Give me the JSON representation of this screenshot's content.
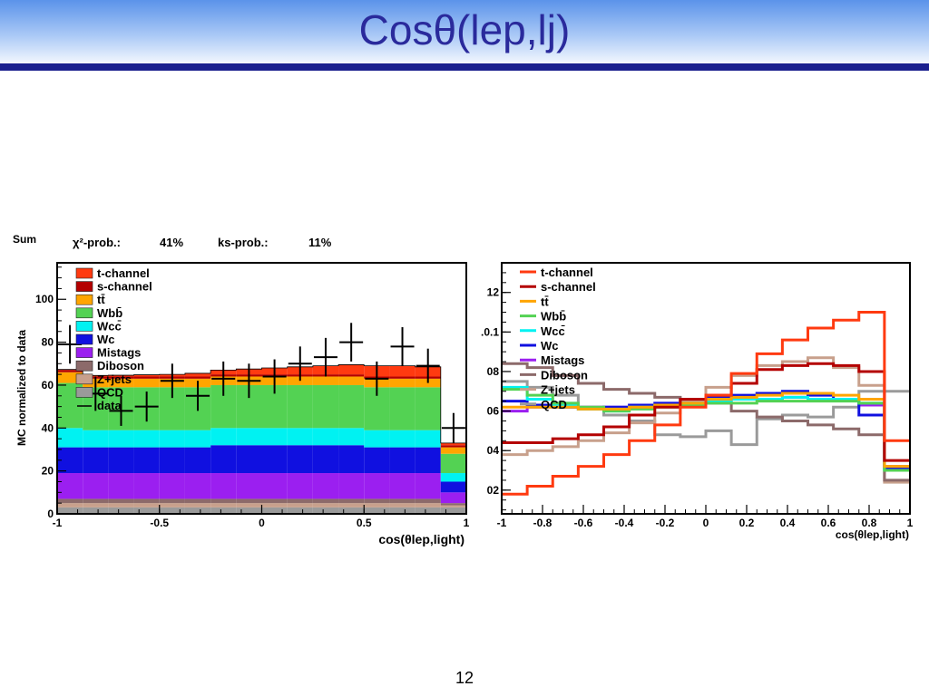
{
  "slide": {
    "title": "Cosθ(lep,lj)",
    "page_number": "12"
  },
  "left_header": {
    "sum_label": "Sum",
    "chi2_label": "χ²-prob.:",
    "chi2_value": "41%",
    "ks_label": "ks-prob.:",
    "ks_value": "11%"
  },
  "colors": {
    "t-channel": "#ff3a10",
    "s-channel": "#b40000",
    "ttbar": "#ffa500",
    "Wbb": "#53d253",
    "Wcc": "#00f2f2",
    "Wc": "#1010e0",
    "Mistags": "#9b1ff0",
    "Diboson": "#8c6a6a",
    "Zjets": "#c8a08c",
    "QCD": "#9a9a9a",
    "data": "#000000"
  },
  "chart_data": [
    {
      "type": "area",
      "stacked": true,
      "xlabel": "cos(θlep,light)",
      "ylabel": "MC normalized to data",
      "xlim": [
        -1,
        1
      ],
      "ylim": [
        0,
        117
      ],
      "x_ticks": [
        "-1",
        "-0.5",
        "0",
        "0.5",
        "1"
      ],
      "y_ticks": [
        "0",
        "20",
        "40",
        "60",
        "80",
        "100"
      ],
      "legend_position": "top-left",
      "bin_edges": [
        -1.0,
        -0.875,
        -0.75,
        -0.625,
        -0.5,
        -0.375,
        -0.25,
        -0.125,
        0.0,
        0.125,
        0.25,
        0.375,
        0.5,
        0.625,
        0.75,
        0.875,
        1.0
      ],
      "series": [
        {
          "name": "QCD",
          "color_key": "QCD",
          "values": [
            3,
            3,
            3,
            3,
            3,
            3,
            3,
            3,
            3,
            3,
            3,
            3,
            3,
            3,
            3,
            3
          ]
        },
        {
          "name": "Z+jets",
          "color_key": "Zjets",
          "values": [
            2,
            2,
            2,
            2,
            2,
            2,
            2,
            2,
            2,
            2,
            2,
            2,
            2,
            2,
            2,
            1
          ]
        },
        {
          "name": "Diboson",
          "color_key": "Diboson",
          "values": [
            2,
            2,
            2,
            2,
            2,
            2,
            2,
            2,
            2,
            2,
            2,
            2,
            2,
            2,
            2,
            1
          ]
        },
        {
          "name": "Mistags",
          "color_key": "Mistags",
          "values": [
            12,
            12,
            12,
            12,
            12,
            12,
            12,
            12,
            12,
            12,
            12,
            12,
            12,
            12,
            12,
            5
          ]
        },
        {
          "name": "Wc",
          "color_key": "Wc",
          "values": [
            12,
            12,
            12,
            12,
            12,
            12,
            13,
            13,
            13,
            13,
            13,
            13,
            12,
            12,
            12,
            5
          ]
        },
        {
          "name": "Wcc̄",
          "color_key": "Wcc",
          "values": [
            9,
            8,
            8,
            8,
            8,
            8,
            8,
            8,
            8,
            8,
            8,
            8,
            8,
            8,
            8,
            4
          ]
        },
        {
          "name": "Wbb̄",
          "color_key": "Wbb",
          "values": [
            21,
            20,
            20,
            20,
            20,
            20,
            20,
            20,
            20,
            20,
            20,
            20,
            20,
            20,
            20,
            9
          ]
        },
        {
          "name": "tt̄",
          "color_key": "ttbar",
          "values": [
            5,
            4,
            4,
            4,
            4,
            4,
            4,
            4,
            4,
            4,
            4,
            4,
            4,
            4,
            4,
            3
          ]
        },
        {
          "name": "s-channel",
          "color_key": "s-channel",
          "values": [
            1,
            1,
            1,
            1,
            1,
            1,
            1,
            1,
            1,
            1,
            1,
            1,
            1,
            1,
            1,
            1
          ]
        },
        {
          "name": "t-channel",
          "color_key": "t-channel",
          "values": [
            0.3,
            0.5,
            0.6,
            0.8,
            1,
            1.5,
            2,
            2.5,
            3,
            3.5,
            4,
            4.5,
            5,
            5,
            4.5,
            1
          ]
        }
      ],
      "data": {
        "name": "data",
        "x": [
          -0.9375,
          -0.8125,
          -0.6875,
          -0.5625,
          -0.4375,
          -0.3125,
          -0.1875,
          -0.0625,
          0.0625,
          0.1875,
          0.3125,
          0.4375,
          0.5625,
          0.6875,
          0.8125,
          0.9375
        ],
        "y": [
          79,
          56,
          48,
          50,
          62,
          55,
          63,
          62,
          64,
          70,
          73,
          80,
          63,
          78,
          69,
          40
        ],
        "yerr": [
          9,
          8,
          7,
          7,
          8,
          7,
          8,
          8,
          8,
          8,
          9,
          9,
          8,
          9,
          8,
          7
        ]
      },
      "legend": [
        "t-channel",
        "s-channel",
        "tt̄",
        "Wbb̄",
        "Wcc̄",
        "Wc",
        "Mistags",
        "Diboson",
        "Z+jets",
        "QCD",
        "data"
      ]
    },
    {
      "type": "line",
      "step": true,
      "normalized": true,
      "xlabel": "cos(θlep,light)",
      "ylabel": "",
      "xlim": [
        -1,
        1
      ],
      "ylim": [
        0.008,
        0.135
      ],
      "x_ticks": [
        "-1",
        "-0.8",
        "-0.6",
        "-0.4",
        "-0.2",
        "0",
        "0.2",
        "0.4",
        "0.6",
        "0.8",
        "1"
      ],
      "y_ticks": [
        "02",
        "04",
        "06",
        "08",
        ".0.1",
        "12"
      ],
      "legend_position": "top-left",
      "bin_edges": [
        -1.0,
        -0.875,
        -0.75,
        -0.625,
        -0.5,
        -0.375,
        -0.25,
        -0.125,
        0.0,
        0.125,
        0.25,
        0.375,
        0.5,
        0.625,
        0.75,
        0.875,
        1.0
      ],
      "series": [
        {
          "name": "t-channel",
          "color_key": "t-channel",
          "values": [
            0.018,
            0.022,
            0.027,
            0.032,
            0.038,
            0.045,
            0.053,
            0.062,
            0.068,
            0.079,
            0.089,
            0.096,
            0.102,
            0.106,
            0.11,
            0.045
          ]
        },
        {
          "name": "s-channel",
          "color_key": "s-channel",
          "values": [
            0.044,
            0.044,
            0.046,
            0.048,
            0.052,
            0.058,
            0.062,
            0.066,
            0.068,
            0.074,
            0.081,
            0.083,
            0.084,
            0.083,
            0.08,
            0.035
          ]
        },
        {
          "name": "tt̄",
          "color_key": "ttbar",
          "values": [
            0.062,
            0.062,
            0.062,
            0.061,
            0.061,
            0.062,
            0.063,
            0.064,
            0.066,
            0.067,
            0.068,
            0.069,
            0.069,
            0.068,
            0.066,
            0.032
          ]
        },
        {
          "name": "Wbb̄",
          "color_key": "Wbb",
          "values": [
            0.071,
            0.068,
            0.064,
            0.062,
            0.06,
            0.061,
            0.062,
            0.063,
            0.064,
            0.064,
            0.065,
            0.065,
            0.065,
            0.065,
            0.064,
            0.03
          ]
        },
        {
          "name": "Wcc̄",
          "color_key": "Wcc",
          "values": [
            0.072,
            0.066,
            0.063,
            0.061,
            0.06,
            0.062,
            0.063,
            0.064,
            0.065,
            0.066,
            0.066,
            0.067,
            0.066,
            0.066,
            0.064,
            0.03
          ]
        },
        {
          "name": "Wc",
          "color_key": "Wc",
          "values": [
            0.065,
            0.063,
            0.062,
            0.061,
            0.062,
            0.063,
            0.064,
            0.066,
            0.067,
            0.068,
            0.069,
            0.07,
            0.068,
            0.066,
            0.058,
            0.031
          ]
        },
        {
          "name": "Mistags",
          "color_key": "Mistags",
          "values": [
            0.06,
            0.062,
            0.062,
            0.062,
            0.062,
            0.062,
            0.063,
            0.064,
            0.065,
            0.066,
            0.066,
            0.067,
            0.066,
            0.066,
            0.063,
            0.032
          ]
        },
        {
          "name": "Diboson",
          "color_key": "Diboson",
          "values": [
            0.084,
            0.082,
            0.078,
            0.074,
            0.071,
            0.069,
            0.067,
            0.066,
            0.064,
            0.06,
            0.057,
            0.055,
            0.053,
            0.051,
            0.048,
            0.025
          ]
        },
        {
          "name": "Z+jets",
          "color_key": "Zjets",
          "values": [
            0.038,
            0.04,
            0.042,
            0.045,
            0.049,
            0.054,
            0.059,
            0.065,
            0.072,
            0.078,
            0.083,
            0.085,
            0.087,
            0.082,
            0.073,
            0.024
          ]
        },
        {
          "name": "QCD",
          "color_key": "QCD",
          "values": [
            0.075,
            0.072,
            0.068,
            0.062,
            0.058,
            0.055,
            0.048,
            0.047,
            0.05,
            0.043,
            0.056,
            0.058,
            0.057,
            0.062,
            0.07,
            0.07
          ]
        }
      ],
      "legend": [
        "t-channel",
        "s-channel",
        "tt̄",
        "Wbb̄",
        "Wcc̄",
        "Wc",
        "Mistags",
        "Diboson",
        "Z+jets",
        "QCD"
      ]
    }
  ]
}
